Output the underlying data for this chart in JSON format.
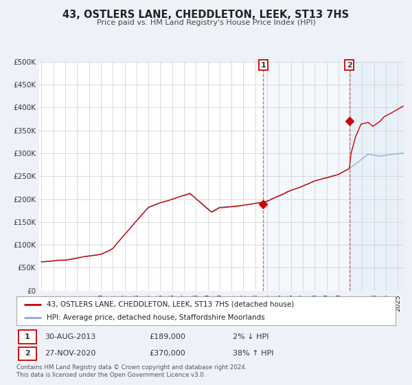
{
  "title": "43, OSTLERS LANE, CHEDDLETON, LEEK, ST13 7HS",
  "subtitle": "Price paid vs. HM Land Registry's House Price Index (HPI)",
  "background_color": "#eef2f8",
  "plot_bg_color": "#ffffff",
  "grid_color": "#cccccc",
  "hpi_color": "#88aadd",
  "price_color": "#cc0000",
  "marker1_date": 2013.66,
  "marker1_price": 189000,
  "marker2_date": 2020.91,
  "marker2_price": 370000,
  "sale1_date_str": "30-AUG-2013",
  "sale1_price_str": "£189,000",
  "sale1_hpi_str": "2% ↓ HPI",
  "sale2_date_str": "27-NOV-2020",
  "sale2_price_str": "£370,000",
  "sale2_hpi_str": "38% ↑ HPI",
  "legend_label1": "43, OSTLERS LANE, CHEDDLETON, LEEK, ST13 7HS (detached house)",
  "legend_label2": "HPI: Average price, detached house, Staffordshire Moorlands",
  "footer1": "Contains HM Land Registry data © Crown copyright and database right 2024.",
  "footer2": "This data is licensed under the Open Government Licence v3.0.",
  "ylim": [
    0,
    500000
  ],
  "yticks": [
    0,
    50000,
    100000,
    150000,
    200000,
    250000,
    300000,
    350000,
    400000,
    450000,
    500000
  ],
  "xlim_start": 1994.8,
  "xlim_end": 2025.5
}
